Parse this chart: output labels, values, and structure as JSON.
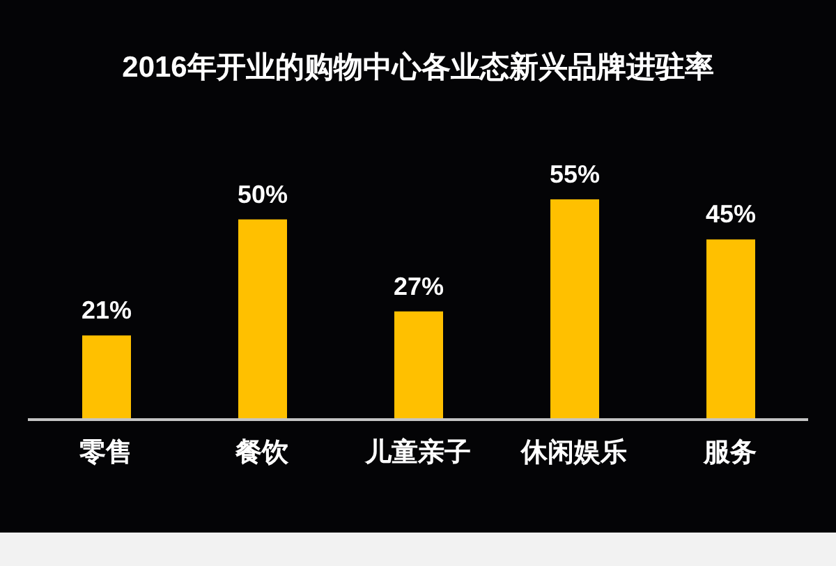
{
  "chart_data": {
    "type": "bar",
    "title": "2016年开业的购物中心各业态新兴品牌进驻率",
    "categories": [
      "零售",
      "餐饮",
      "儿童亲子",
      "休闲娱乐",
      "服务"
    ],
    "values": [
      21,
      50,
      27,
      55,
      45
    ],
    "value_labels": [
      "21%",
      "50%",
      "27%",
      "55%",
      "45%"
    ],
    "color": "#ffc000"
  }
}
